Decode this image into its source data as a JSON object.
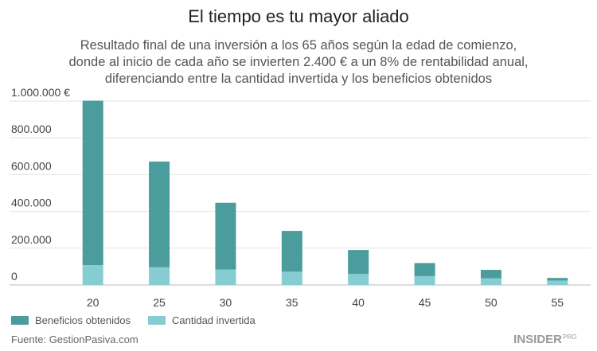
{
  "chart_data": {
    "type": "stacked_bar",
    "title": "El tiempo es tu mayor aliado",
    "subtitle": [
      "Resultado final de una inversión a los 65 años según la edad de comienzo,",
      "donde al inicio de cada año se invierten 2.400 € a un 8% de rentabilidad anual,",
      "diferenciando entre la cantidad invertida y los beneficios obtenidos"
    ],
    "categories": [
      "20",
      "25",
      "30",
      "35",
      "40",
      "45",
      "50",
      "55"
    ],
    "series": [
      {
        "name": "Beneficios obtenidos",
        "color": "#4b9c9d",
        "values": [
          894000,
          575000,
          363000,
          222000,
          130000,
          71000,
          46000,
          14000
        ]
      },
      {
        "name": "Cantidad invertida",
        "color": "#86ccd3",
        "values": [
          108000,
          96000,
          84000,
          72000,
          60000,
          48000,
          36000,
          24000
        ]
      }
    ],
    "ylim": [
      0,
      1000000
    ],
    "yticks": [
      0,
      {
        "value": 200000,
        "label": "200.000"
      },
      {
        "value": 400000,
        "label": "400.000"
      },
      {
        "value": 600000,
        "label": "600.000"
      },
      {
        "value": 800000,
        "label": "800.000"
      },
      {
        "value": 1000000,
        "label": "1.000.000 €"
      }
    ],
    "grid": true,
    "legend": "bottom-left",
    "source": "Fuente: GestionPasiva.com",
    "logo": "INSIDER",
    "logo_suffix": "PRO"
  }
}
